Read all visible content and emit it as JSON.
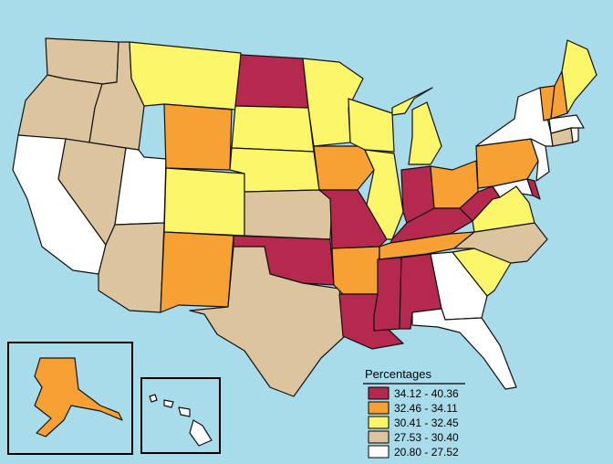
{
  "legend": {
    "title": "Percentages",
    "classes": [
      {
        "label": "34.12 - 40.36",
        "color": "#b5294f"
      },
      {
        "label": "32.46 - 34.11",
        "color": "#f7a135"
      },
      {
        "label": "30.41 - 32.45",
        "color": "#fbf56a"
      },
      {
        "label": "27.53 - 30.40",
        "color": "#dcc59e"
      },
      {
        "label": "20.80 - 27.52",
        "color": "#ffffff"
      }
    ]
  },
  "colors": {
    "background": "#a8dcea",
    "border": "#111111"
  },
  "states": {
    "washington": 3,
    "oregon": 3,
    "california": 4,
    "idaho": 3,
    "nevada": 3,
    "utah": 4,
    "arizona": 3,
    "montana": 2,
    "wyoming": 1,
    "colorado": 2,
    "new-mexico": 1,
    "north-dakota": 0,
    "south-dakota": 2,
    "nebraska": 2,
    "kansas": 3,
    "oklahoma": 0,
    "texas": 3,
    "minnesota": 2,
    "iowa": 1,
    "missouri": 0,
    "arkansas": 1,
    "louisiana": 0,
    "wisconsin": 2,
    "illinois": 2,
    "michigan": 2,
    "indiana": 0,
    "ohio": 1,
    "kentucky": 0,
    "tennessee": 1,
    "mississippi": 0,
    "alabama": 0,
    "georgia": 4,
    "florida": 4,
    "south-carolina": 2,
    "north-carolina": 3,
    "virginia": 2,
    "west-virginia": 0,
    "maryland": 4,
    "delaware": 0,
    "pennsylvania": 1,
    "new-jersey": 4,
    "new-york": 4,
    "connecticut": 3,
    "rhode-island": 4,
    "massachusetts": 4,
    "vermont": 1,
    "new-hampshire": 1,
    "maine": 2,
    "alaska": 1,
    "hawaii": 4
  }
}
